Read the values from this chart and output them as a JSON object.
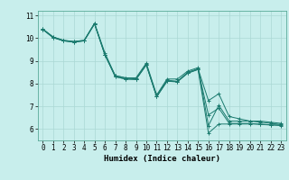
{
  "title": "",
  "xlabel": "Humidex (Indice chaleur)",
  "ylabel": "",
  "background_color": "#c8eeec",
  "grid_color": "#aad8d4",
  "line_color": "#1a7a6e",
  "xlim": [
    -0.5,
    23.5
  ],
  "ylim": [
    5.5,
    11.2
  ],
  "yticks": [
    6,
    7,
    8,
    9,
    10,
    11
  ],
  "xticks": [
    0,
    1,
    2,
    3,
    4,
    5,
    6,
    7,
    8,
    9,
    10,
    11,
    12,
    13,
    14,
    15,
    16,
    17,
    18,
    19,
    20,
    21,
    22,
    23
  ],
  "lines": [
    {
      "x": [
        0,
        1,
        2,
        3,
        4,
        5,
        6,
        7,
        8,
        9,
        10,
        11,
        12,
        13,
        14,
        15,
        16,
        17,
        18,
        19,
        20,
        21,
        22,
        23
      ],
      "y": [
        10.4,
        10.05,
        9.9,
        9.85,
        9.9,
        10.65,
        9.25,
        8.35,
        8.25,
        8.25,
        8.9,
        7.5,
        8.2,
        8.2,
        8.55,
        8.7,
        6.15,
        7.05,
        6.35,
        6.35,
        6.35,
        6.35,
        6.3,
        6.25
      ]
    },
    {
      "x": [
        0,
        1,
        2,
        3,
        4,
        5,
        6,
        7,
        8,
        9,
        10,
        11,
        12,
        13,
        14,
        15,
        16,
        17,
        18,
        19,
        20,
        21,
        22,
        23
      ],
      "y": [
        10.4,
        10.05,
        9.9,
        9.85,
        9.9,
        10.65,
        9.35,
        8.35,
        8.25,
        8.2,
        8.85,
        7.45,
        8.15,
        8.1,
        8.5,
        8.65,
        7.25,
        7.55,
        6.55,
        6.45,
        6.35,
        6.3,
        6.25,
        6.2
      ]
    },
    {
      "x": [
        0,
        1,
        2,
        3,
        4,
        5,
        6,
        7,
        8,
        9,
        10,
        11,
        12,
        13,
        14,
        15,
        16,
        17,
        18,
        19,
        20,
        21,
        22,
        23
      ],
      "y": [
        10.38,
        10.02,
        9.88,
        9.82,
        9.88,
        10.62,
        9.28,
        8.3,
        8.2,
        8.18,
        8.82,
        7.42,
        8.1,
        8.08,
        8.46,
        8.62,
        5.82,
        6.22,
        6.22,
        6.22,
        6.22,
        6.22,
        6.18,
        6.15
      ]
    },
    {
      "x": [
        0,
        1,
        2,
        3,
        4,
        5,
        6,
        7,
        8,
        9,
        10,
        11,
        12,
        13,
        14,
        15,
        16,
        17,
        18,
        19,
        20,
        21,
        22,
        23
      ],
      "y": [
        10.38,
        10.02,
        9.88,
        9.82,
        9.88,
        10.62,
        9.28,
        8.3,
        8.2,
        8.18,
        8.82,
        7.42,
        8.1,
        8.08,
        8.46,
        8.62,
        6.62,
        6.92,
        6.25,
        6.25,
        6.25,
        6.2,
        6.18,
        6.18
      ]
    }
  ]
}
